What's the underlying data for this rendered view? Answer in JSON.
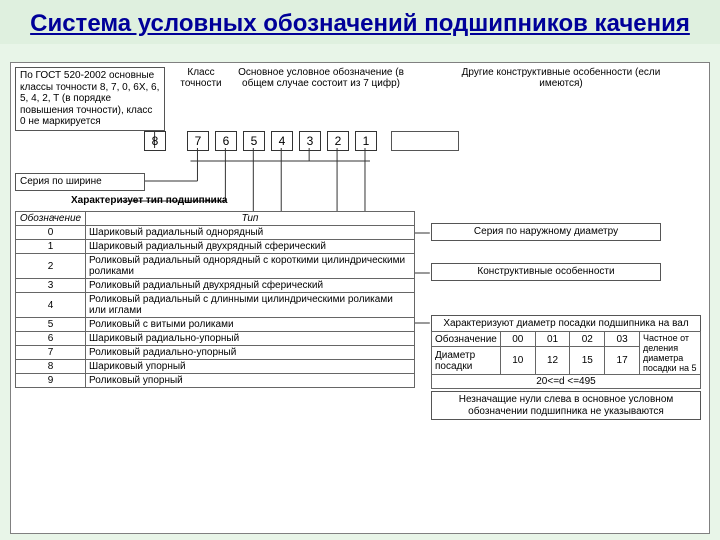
{
  "title": "Система условных обозначений подшипников качения",
  "gost_note": "По ГОСТ 520-2002 основные классы точности 8, 7, 0, 6X, 6, 5, 4, 2, T (в порядке повышения точности), класс 0 не маркируется",
  "labels": {
    "klass": "Класс точности",
    "main_desig": "Основное условное обозначение (в общем случае состоит из 7 цифр)",
    "other_feat": "Другие конструктивные особенности (если имеются)",
    "width_series": "Серия по ширине",
    "type_header": "Характеризует тип подшипника",
    "outer_series": "Серия по наружному диаметру",
    "constr_feat": "Конструктивные особенности",
    "diam_header": "Характеризуют диаметр посадки подшипника на вал",
    "note_zeros": "Незначащие нули слева в основное условном обозначении подшипника не указываются",
    "quot_col": "Частное от деления диаметра посадки на 5",
    "d_range": "20<=d <=495"
  },
  "digits": [
    "8",
    "7",
    "6",
    "5",
    "4",
    "3",
    "2",
    "1"
  ],
  "type_table": {
    "cols": [
      "Обозначение",
      "Тип"
    ],
    "rows": [
      [
        "0",
        "Шариковый радиальный однорядный"
      ],
      [
        "1",
        "Шариковый радиальный двухрядный сферический"
      ],
      [
        "2",
        "Роликовый радиальный однорядный с короткими цилиндрическими роликами"
      ],
      [
        "3",
        "Роликовый радиальный двухрядный сферический"
      ],
      [
        "4",
        "Роликовый радиальный с длинными цилиндрическими роликами или иглами"
      ],
      [
        "5",
        "Роликовый с витыми роликами"
      ],
      [
        "6",
        "Шариковый радиально-упорный"
      ],
      [
        "7",
        "Роликовый радиально-упорный"
      ],
      [
        "8",
        "Шариковый упорный"
      ],
      [
        "9",
        "Роликовый упорный"
      ]
    ]
  },
  "diam_table": {
    "row1_label": "Обозначение",
    "row1_vals": [
      "00",
      "01",
      "02",
      "03"
    ],
    "row2_label": "Диаметр посадки",
    "row2_vals": [
      "10",
      "12",
      "15",
      "17"
    ]
  },
  "colors": {
    "bg": "#e8f5e8",
    "title": "#000099",
    "border": "#666666"
  }
}
